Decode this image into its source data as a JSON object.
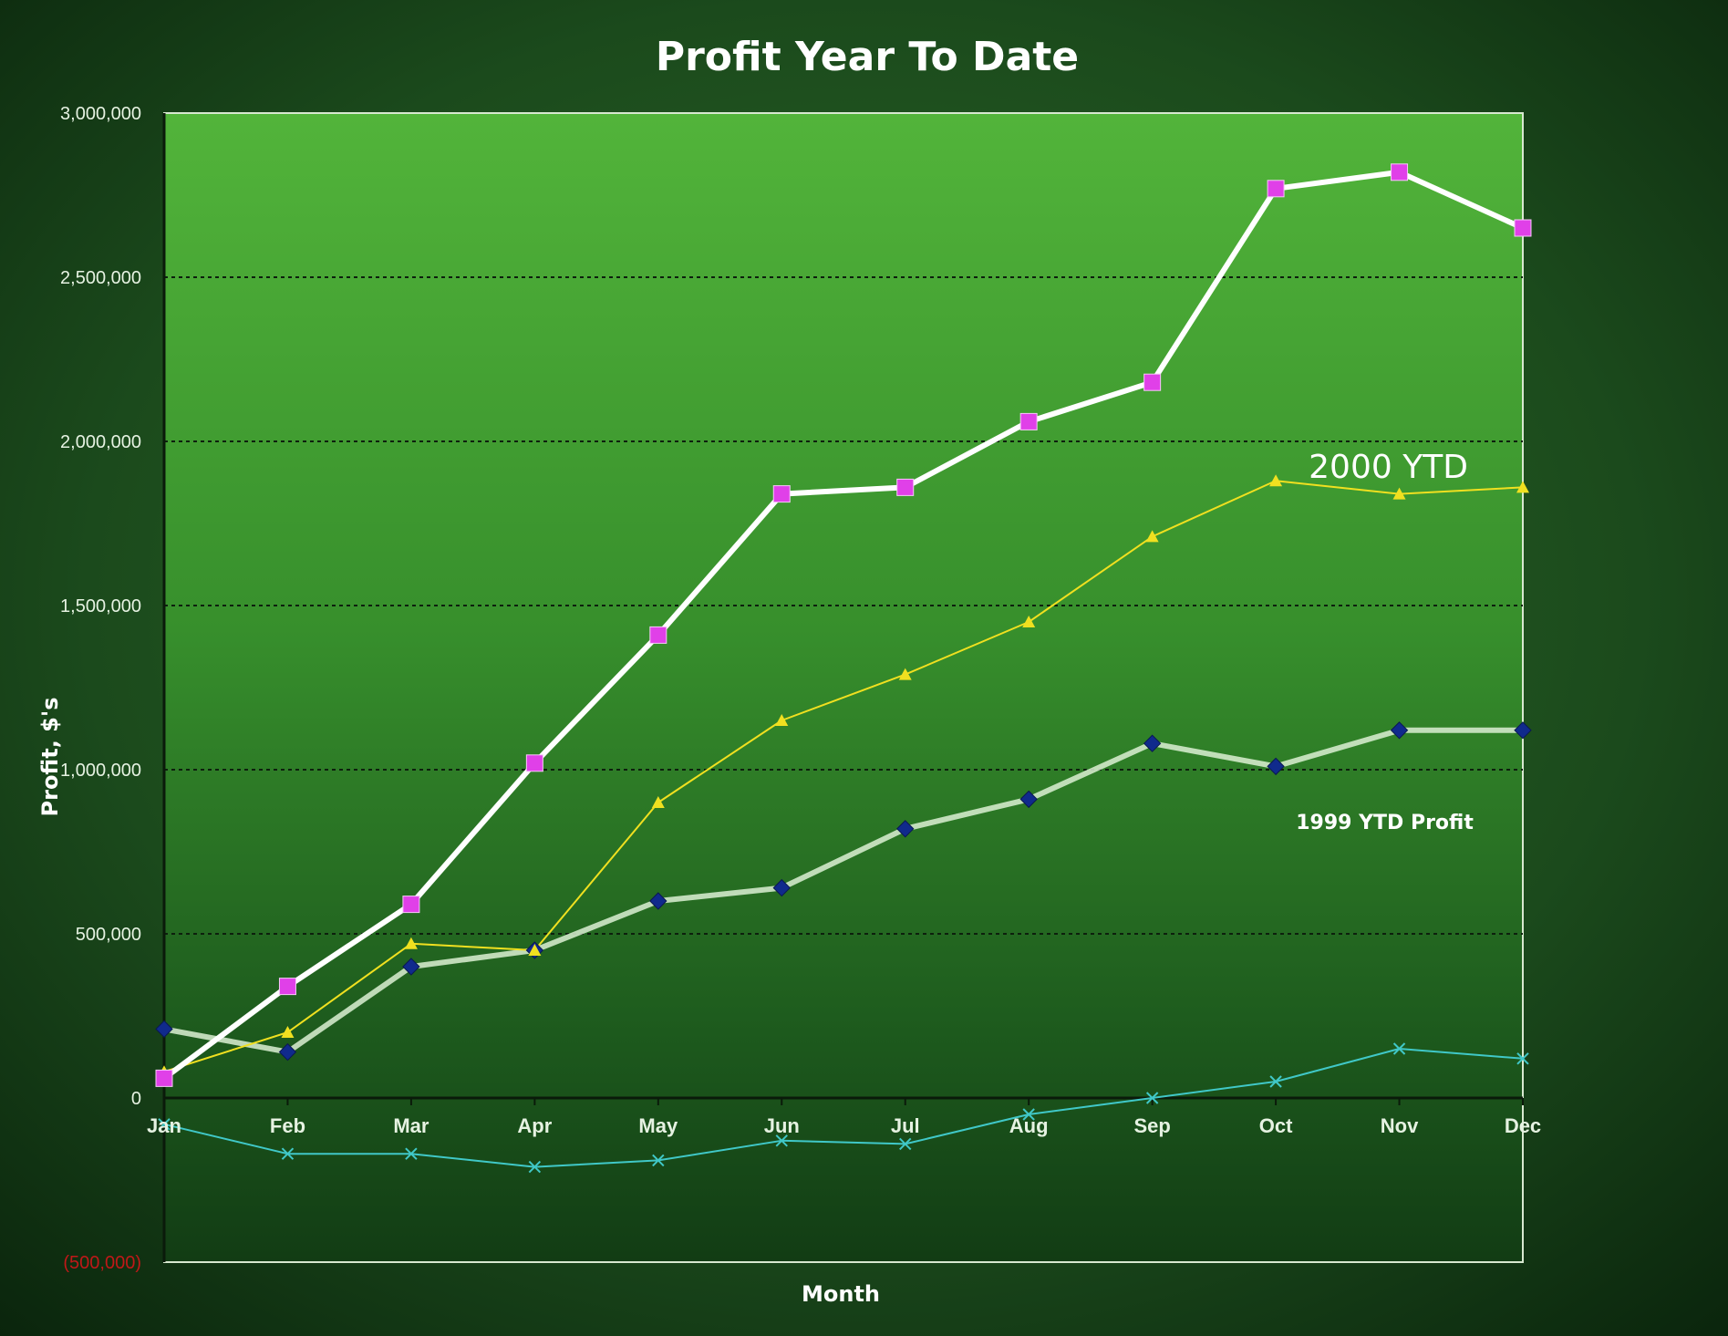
{
  "colors": {
    "pink": "#e040e8",
    "yellow": "#f0e020",
    "navy": "#102a8c",
    "cyan": "#40c8c8",
    "negative_tick": "#c01818"
  },
  "chart_data": {
    "type": "line",
    "title": "Profit Year To Date",
    "xlabel": "Month",
    "ylabel": "Profit, $'s",
    "categories": [
      "Jan",
      "Feb",
      "Mar",
      "Apr",
      "May",
      "Jun",
      "Jul",
      "Aug",
      "Sep",
      "Oct",
      "Nov",
      "Dec"
    ],
    "ylim": [
      -500000,
      3000000
    ],
    "yticks": [
      {
        "value": 3000000,
        "label": "3,000,000"
      },
      {
        "value": 2500000,
        "label": "2,500,000"
      },
      {
        "value": 2000000,
        "label": "2,000,000"
      },
      {
        "value": 1500000,
        "label": "1,500,000"
      },
      {
        "value": 1000000,
        "label": "1,000,000"
      },
      {
        "value": 500000,
        "label": "500,000"
      },
      {
        "value": 0,
        "label": "0"
      },
      {
        "value": -500000,
        "label": "(500,000)"
      }
    ],
    "grid": "dotted-horizontal",
    "annotations": [
      {
        "text": "2000  YTD",
        "series": "pink",
        "month": "Nov",
        "value": 1850000
      },
      {
        "text": "1999 YTD Profit",
        "series": "navy",
        "month": "Nov",
        "value": 830000
      }
    ],
    "series": [
      {
        "key": "pink",
        "marker": "square",
        "line": "white-thick",
        "values": [
          60000,
          340000,
          590000,
          1020000,
          1410000,
          1840000,
          1860000,
          2060000,
          2180000,
          2770000,
          2820000,
          2650000
        ]
      },
      {
        "key": "yellow",
        "marker": "triangle",
        "line": "yellow-thin",
        "values": [
          80000,
          200000,
          470000,
          450000,
          900000,
          1150000,
          1290000,
          1450000,
          1710000,
          1880000,
          1840000,
          1860000
        ]
      },
      {
        "key": "navy",
        "marker": "diamond",
        "line": "white-faint",
        "values": [
          210000,
          140000,
          400000,
          450000,
          600000,
          640000,
          820000,
          910000,
          1080000,
          1010000,
          1120000,
          1120000
        ]
      },
      {
        "key": "cyan",
        "marker": "x",
        "line": "cyan-thin",
        "values": [
          -80000,
          -170000,
          -170000,
          -210000,
          -190000,
          -130000,
          -140000,
          -50000,
          0,
          50000,
          150000,
          120000
        ]
      }
    ]
  }
}
